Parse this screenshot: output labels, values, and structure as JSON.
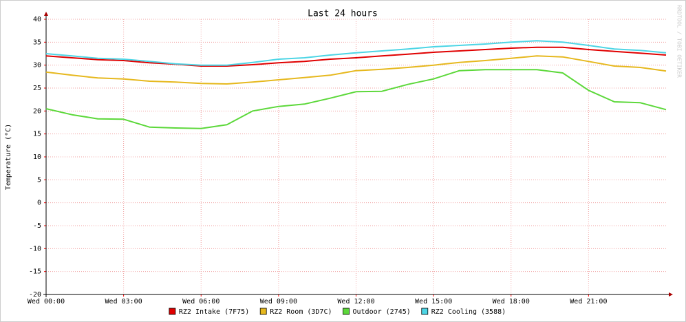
{
  "chart_data": {
    "type": "line",
    "title": "Last 24 hours",
    "y_label": "Temperature (°C)",
    "watermark": "RRDTOOL / TOBI OETIKER",
    "x": [
      0,
      1,
      2,
      3,
      4,
      5,
      6,
      7,
      8,
      9,
      10,
      11,
      12,
      13,
      14,
      15,
      16,
      17,
      18,
      19,
      20,
      21,
      22,
      23,
      24
    ],
    "xlim": [
      0,
      24
    ],
    "xticks": [
      {
        "value": 0,
        "label": "Wed 00:00"
      },
      {
        "value": 3,
        "label": "Wed 03:00"
      },
      {
        "value": 6,
        "label": "Wed 06:00"
      },
      {
        "value": 9,
        "label": "Wed 09:00"
      },
      {
        "value": 12,
        "label": "Wed 12:00"
      },
      {
        "value": 15,
        "label": "Wed 15:00"
      },
      {
        "value": 18,
        "label": "Wed 18:00"
      },
      {
        "value": 21,
        "label": "Wed 21:00"
      }
    ],
    "ylim": [
      -20,
      40
    ],
    "yticks": [
      -20,
      -15,
      -10,
      -5,
      0,
      5,
      10,
      15,
      20,
      25,
      30,
      35,
      40
    ],
    "grid": true,
    "series": [
      {
        "name": "RZ2 Intake (7F75)",
        "color": "#e00000",
        "values": [
          32.0,
          31.6,
          31.2,
          31.0,
          30.5,
          30.2,
          29.8,
          29.8,
          30.1,
          30.5,
          30.8,
          31.3,
          31.6,
          32.0,
          32.4,
          32.8,
          33.1,
          33.4,
          33.7,
          33.9,
          33.9,
          33.4,
          33.0,
          32.6,
          32.2
        ]
      },
      {
        "name": "RZ2 Room (3D7C)",
        "color": "#e6b81e",
        "values": [
          28.5,
          27.8,
          27.2,
          27.0,
          26.5,
          26.3,
          26.0,
          25.9,
          26.3,
          26.8,
          27.3,
          27.8,
          28.8,
          29.1,
          29.5,
          30.0,
          30.6,
          31.0,
          31.5,
          32.0,
          31.8,
          30.8,
          29.8,
          29.5,
          28.7
        ]
      },
      {
        "name": "Outdoor (2745)",
        "color": "#5cd83a",
        "values": [
          20.5,
          19.2,
          18.3,
          18.2,
          16.5,
          16.3,
          16.2,
          17.0,
          20.0,
          21.0,
          21.5,
          22.8,
          24.2,
          24.3,
          25.8,
          27.0,
          28.8,
          29.0,
          29.0,
          29.0,
          28.3,
          24.5,
          22.0,
          21.8,
          20.3
        ]
      },
      {
        "name": "RZ2 Cooling (3588)",
        "color": "#4dd5e5",
        "values": [
          32.5,
          32.0,
          31.5,
          31.3,
          30.8,
          30.3,
          30.0,
          30.0,
          30.6,
          31.3,
          31.6,
          32.2,
          32.7,
          33.1,
          33.5,
          34.0,
          34.3,
          34.6,
          35.0,
          35.3,
          35.0,
          34.3,
          33.5,
          33.2,
          32.7
        ]
      }
    ]
  }
}
